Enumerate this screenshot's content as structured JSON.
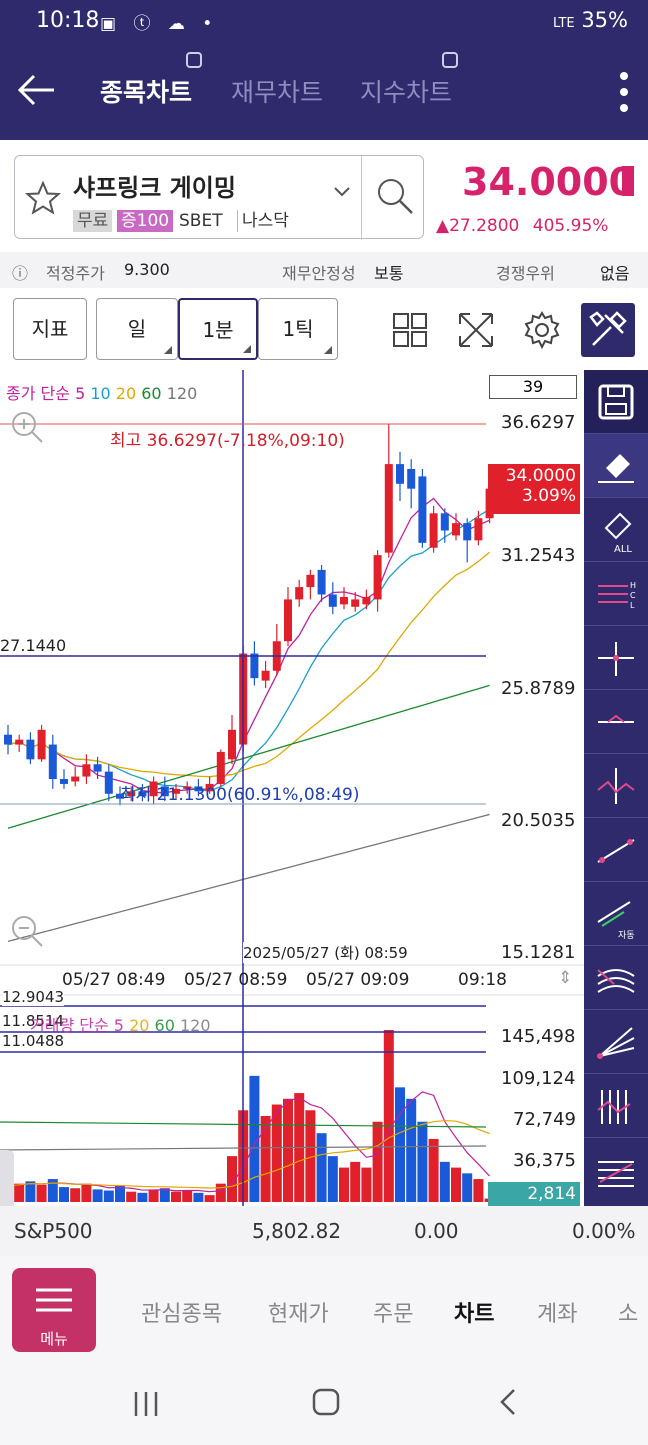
{
  "status_bar": {
    "time": "10:18",
    "battery": "35%",
    "network": "LTE"
  },
  "header": {
    "tabs": [
      {
        "label": "종목차트",
        "active": true
      },
      {
        "label": "재무차트",
        "active": false
      },
      {
        "label": "지수차트",
        "active": false
      }
    ]
  },
  "stock": {
    "name": "샤프링크 게이밍",
    "tags": [
      "무료",
      "증100",
      "SBET",
      "나스닥"
    ],
    "price": "34.0000",
    "change": "▲27.2800",
    "change_pct": "405.95%"
  },
  "info_row": {
    "fair_price_label": "적정주가",
    "fair_price_value": "9.300",
    "stability_label": "재무안정성",
    "stability_value": "보통",
    "competition_label": "경쟁우위",
    "competition_value": "없음"
  },
  "toolbar": {
    "indicator": "지표",
    "day": "일",
    "one_min": "1분",
    "one_tick": "1틱"
  },
  "price_chart": {
    "legend": {
      "prefix": "종가 단순",
      "periods": [
        "5",
        "10",
        "20",
        "60",
        "120"
      ],
      "colors": [
        "#c020a0",
        "#1aa0c8",
        "#e0a800",
        "#1a8a30",
        "#777777"
      ]
    },
    "count_box": "39",
    "y_ticks": [
      "36.6297",
      "31.2543",
      "25.8789",
      "20.5035",
      "15.1281"
    ],
    "crosshair_price": "27.1440",
    "current_price": "34.0000",
    "current_pct": "3.09%",
    "high_label": "최고 36.6297(-7.18%,09:10)",
    "low_label": "최저 21.1300(60.91%,08:49)",
    "crosshair_time": "2025/05/27 (화) 08:59",
    "x_labels": [
      "05/27 08:49",
      "05/27 08:59",
      "05/27 09:09",
      "09:18"
    ]
  },
  "volume_chart": {
    "legend_prefix": "거래량 단순",
    "legend_periods": [
      "5",
      "20",
      "60",
      "120"
    ],
    "crosshair_values": [
      "12.9043",
      "11.8514",
      "11.0488"
    ],
    "y_ticks": [
      "145,498",
      "109,124",
      "72,749",
      "36,375"
    ],
    "current_volume": "2,814"
  },
  "chart_data": {
    "type": "candlestick",
    "ylim": [
      15.1281,
      36.6297
    ],
    "candles": [
      {
        "o": 24.0,
        "c": 23.6,
        "h": 24.4,
        "l": 23.2
      },
      {
        "o": 23.6,
        "c": 23.8,
        "h": 24.0,
        "l": 23.3
      },
      {
        "o": 23.8,
        "c": 23.0,
        "h": 24.1,
        "l": 22.8
      },
      {
        "o": 23.0,
        "c": 24.2,
        "h": 24.4,
        "l": 22.9
      },
      {
        "o": 23.6,
        "c": 22.2,
        "h": 24.0,
        "l": 21.8
      },
      {
        "o": 22.2,
        "c": 22.0,
        "h": 22.6,
        "l": 21.8
      },
      {
        "o": 22.1,
        "c": 22.3,
        "h": 22.7,
        "l": 21.9
      },
      {
        "o": 22.3,
        "c": 22.8,
        "h": 23.2,
        "l": 22.0
      },
      {
        "o": 22.8,
        "c": 22.5,
        "h": 23.1,
        "l": 22.2
      },
      {
        "o": 22.5,
        "c": 21.6,
        "h": 22.8,
        "l": 21.3
      },
      {
        "o": 21.6,
        "c": 21.4,
        "h": 21.9,
        "l": 21.13
      },
      {
        "o": 21.5,
        "c": 21.7,
        "h": 21.9,
        "l": 21.3
      },
      {
        "o": 21.7,
        "c": 21.5,
        "h": 22.0,
        "l": 21.3
      },
      {
        "o": 21.5,
        "c": 22.1,
        "h": 22.3,
        "l": 21.2
      },
      {
        "o": 21.9,
        "c": 21.5,
        "h": 22.3,
        "l": 21.3
      },
      {
        "o": 21.6,
        "c": 21.8,
        "h": 22.0,
        "l": 21.4
      },
      {
        "o": 21.8,
        "c": 21.9,
        "h": 22.1,
        "l": 21.6
      },
      {
        "o": 21.9,
        "c": 21.7,
        "h": 22.2,
        "l": 21.5
      },
      {
        "o": 21.7,
        "c": 22.0,
        "h": 22.3,
        "l": 21.6
      },
      {
        "o": 22.0,
        "c": 23.3,
        "h": 23.4,
        "l": 21.9
      },
      {
        "o": 23.0,
        "c": 24.2,
        "h": 24.8,
        "l": 22.8
      },
      {
        "o": 23.6,
        "c": 27.3,
        "h": 27.6,
        "l": 23.3
      },
      {
        "o": 27.3,
        "c": 26.3,
        "h": 27.8,
        "l": 26.0
      },
      {
        "o": 26.2,
        "c": 26.6,
        "h": 27.0,
        "l": 25.9
      },
      {
        "o": 26.6,
        "c": 27.8,
        "h": 28.5,
        "l": 26.4
      },
      {
        "o": 27.8,
        "c": 29.5,
        "h": 30.0,
        "l": 27.6
      },
      {
        "o": 29.5,
        "c": 30.0,
        "h": 30.3,
        "l": 29.2
      },
      {
        "o": 30.0,
        "c": 30.5,
        "h": 30.7,
        "l": 29.5
      },
      {
        "o": 30.7,
        "c": 29.7,
        "h": 30.9,
        "l": 29.4
      },
      {
        "o": 29.7,
        "c": 29.2,
        "h": 30.2,
        "l": 28.9
      },
      {
        "o": 29.3,
        "c": 29.6,
        "h": 30.0,
        "l": 29.1
      },
      {
        "o": 29.2,
        "c": 29.5,
        "h": 29.8,
        "l": 29.0
      },
      {
        "o": 29.3,
        "c": 29.6,
        "h": 29.9,
        "l": 29.1
      },
      {
        "o": 29.5,
        "c": 31.3,
        "h": 31.5,
        "l": 29.0
      },
      {
        "o": 31.4,
        "c": 35.0,
        "h": 36.6297,
        "l": 31.2
      },
      {
        "o": 35.0,
        "c": 34.2,
        "h": 35.5,
        "l": 33.5
      },
      {
        "o": 34.8,
        "c": 34.0,
        "h": 35.2,
        "l": 33.2
      },
      {
        "o": 34.5,
        "c": 31.8,
        "h": 34.8,
        "l": 31.6
      },
      {
        "o": 31.6,
        "c": 33.0,
        "h": 33.3,
        "l": 31.4
      },
      {
        "o": 33.0,
        "c": 32.3,
        "h": 33.2,
        "l": 31.8
      },
      {
        "o": 32.1,
        "c": 32.6,
        "h": 33.0,
        "l": 31.9
      },
      {
        "o": 32.6,
        "c": 31.9,
        "h": 32.8,
        "l": 31.0
      },
      {
        "o": 31.9,
        "c": 32.8,
        "h": 33.1,
        "l": 31.7
      },
      {
        "o": 32.8,
        "c": 34.0,
        "h": 34.4,
        "l": 32.6
      }
    ],
    "volumes_k": [
      14,
      16,
      18,
      15,
      20,
      13,
      12,
      16,
      11,
      10,
      14,
      9,
      8,
      11,
      12,
      9,
      10,
      8,
      6,
      16,
      40,
      80,
      110,
      75,
      85,
      90,
      95,
      80,
      60,
      40,
      30,
      35,
      30,
      70,
      150,
      100,
      90,
      70,
      55,
      35,
      30,
      25,
      20,
      3
    ]
  }
}
